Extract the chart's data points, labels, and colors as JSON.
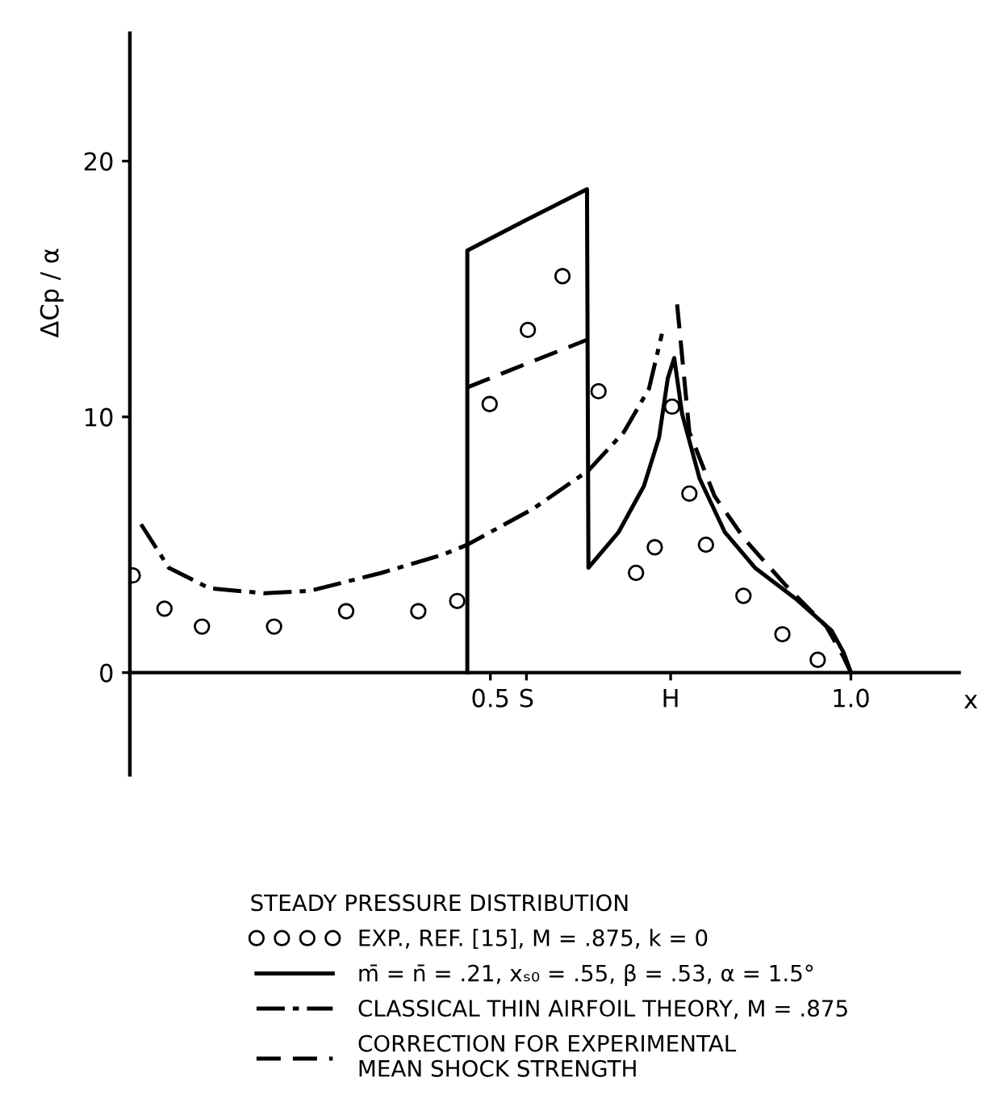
{
  "chart_data": {
    "type": "line",
    "ylabel": "ΔCp / α",
    "xlabel": "x",
    "legend_title": "STEADY PRESSURE DISTRIBUTION",
    "legend": "bottom",
    "xlim": [
      0,
      1.15
    ],
    "ylim": [
      -4,
      25
    ],
    "xticks": [
      0.5,
      {
        "value": 0.55,
        "label": "S"
      },
      {
        "value": 0.75,
        "label": "H"
      },
      {
        "value": 1.0,
        "label": "1.0"
      }
    ],
    "yticks": [
      0,
      10,
      20
    ],
    "grid": false,
    "series": [
      {
        "name": "EXP., REF. [15], M = .875, k = 0",
        "type": "scatter",
        "marker": "circle",
        "color": "#000000",
        "x": [
          0.004,
          0.048,
          0.1,
          0.2,
          0.3,
          0.4,
          0.454,
          0.499,
          0.552,
          0.6,
          0.65,
          0.702,
          0.728,
          0.752,
          0.776,
          0.799,
          0.851,
          0.905,
          0.954
        ],
        "values": [
          3.8,
          2.5,
          1.8,
          1.8,
          2.4,
          2.4,
          2.8,
          10.5,
          13.4,
          15.5,
          11.0,
          3.9,
          4.9,
          10.4,
          7.0,
          5.0,
          3.0,
          1.5,
          0.5
        ]
      },
      {
        "name": "m̄ = n̄ = .21, xₛ₀ = .55, β = .53, α = 1.5°",
        "line_style": "solid",
        "color": "#000000",
        "x": [
          0.468,
          0.468,
          0.55,
          0.634,
          0.636,
          0.678,
          0.713,
          0.734,
          0.746,
          0.755,
          0.766,
          0.79,
          0.825,
          0.867,
          0.923,
          0.973,
          0.99,
          1.0
        ],
        "values": [
          0,
          16.5,
          17.7,
          18.9,
          4.1,
          5.5,
          7.3,
          9.2,
          11.5,
          12.3,
          10.1,
          7.6,
          5.5,
          4.1,
          2.9,
          1.65,
          0.78,
          0
        ]
      },
      {
        "name": "CLASSICAL THIN AIRFOIL THEORY, M = .875",
        "line_style": "dashdot",
        "color": "#000000",
        "x": [
          0.0155,
          0.054,
          0.11,
          0.187,
          0.25,
          0.349,
          0.433,
          0.468,
          0.559,
          0.636,
          0.685,
          0.72,
          0.738
        ],
        "values": [
          5.8,
          4.1,
          3.3,
          3.1,
          3.2,
          3.9,
          4.6,
          5.0,
          6.4,
          7.9,
          9.4,
          11.1,
          13.25
        ]
      },
      {
        "name": "CORRECTION FOR EXPERIMENTAL\nMEAN SHOCK STRENGTH",
        "line_style": "dashed",
        "color": "#000000",
        "x": [
          0.468,
          0.552,
          0.633,
          0.7,
          0.759,
          0.776,
          0.811,
          0.853,
          0.91,
          0.966,
          0.99,
          1.0
        ],
        "values": [
          11.15,
          12.1,
          13.0,
          null,
          14.4,
          9.4,
          6.9,
          5.2,
          3.4,
          1.8,
          0.6,
          0
        ]
      }
    ]
  }
}
